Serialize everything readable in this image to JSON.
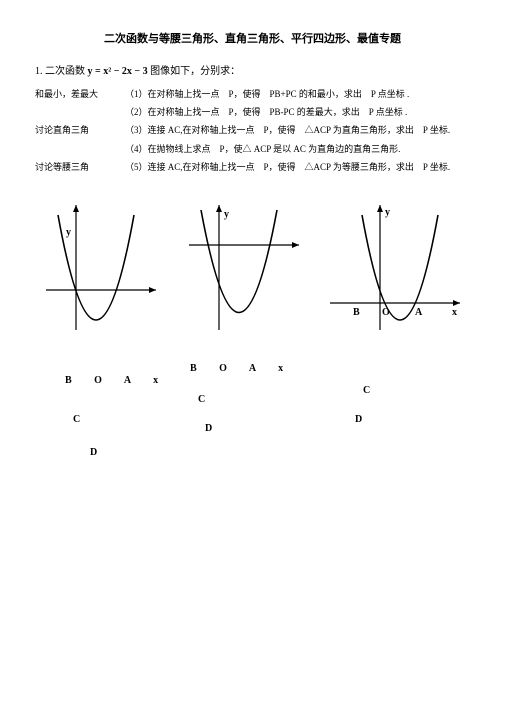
{
  "title": "二次函数与等腰三角形、直角三角形、平行四边形、最值专题",
  "problem_number": "1. 二次函数",
  "equation": "y = x² − 2x − 3",
  "problem_suffix": "图像如下，分别求：",
  "rows": [
    {
      "left": "和最小，差最大",
      "right": "（1）在对称轴上找一点　P，使得　PB+PC 的和最小，求出　P 点坐标 ."
    },
    {
      "left": "",
      "right": "（2）在对称轴上找一点　P，使得　PB-PC 的差最大，求出　P 点坐标 ."
    },
    {
      "left": "讨论直角三角",
      "right": "（3）连接 AC,在对称轴上找一点　P，使得　△ACP 为直角三角形，求出　P 坐标."
    },
    {
      "left": "",
      "right": "（4）在抛物线上求点　P，使△ ACP 是以 AC 为直角边的直角三角形."
    },
    {
      "left": "讨论等腰三角",
      "right": "（5）连接 AC,在对称轴上找一点　P，使得　△ACP 为等腰三角形，求出　P 坐标."
    }
  ],
  "graph": {
    "stroke": "#000000",
    "stroke_width": 1.2,
    "curve_width": 1.6
  },
  "graph3_labels": {
    "B": "B",
    "O": "O",
    "A": "A",
    "x": "x",
    "y": "y"
  },
  "letters": {
    "boa": "B  O   A    x",
    "boa2": "B   O    A    x",
    "c": "C",
    "d": "D"
  }
}
